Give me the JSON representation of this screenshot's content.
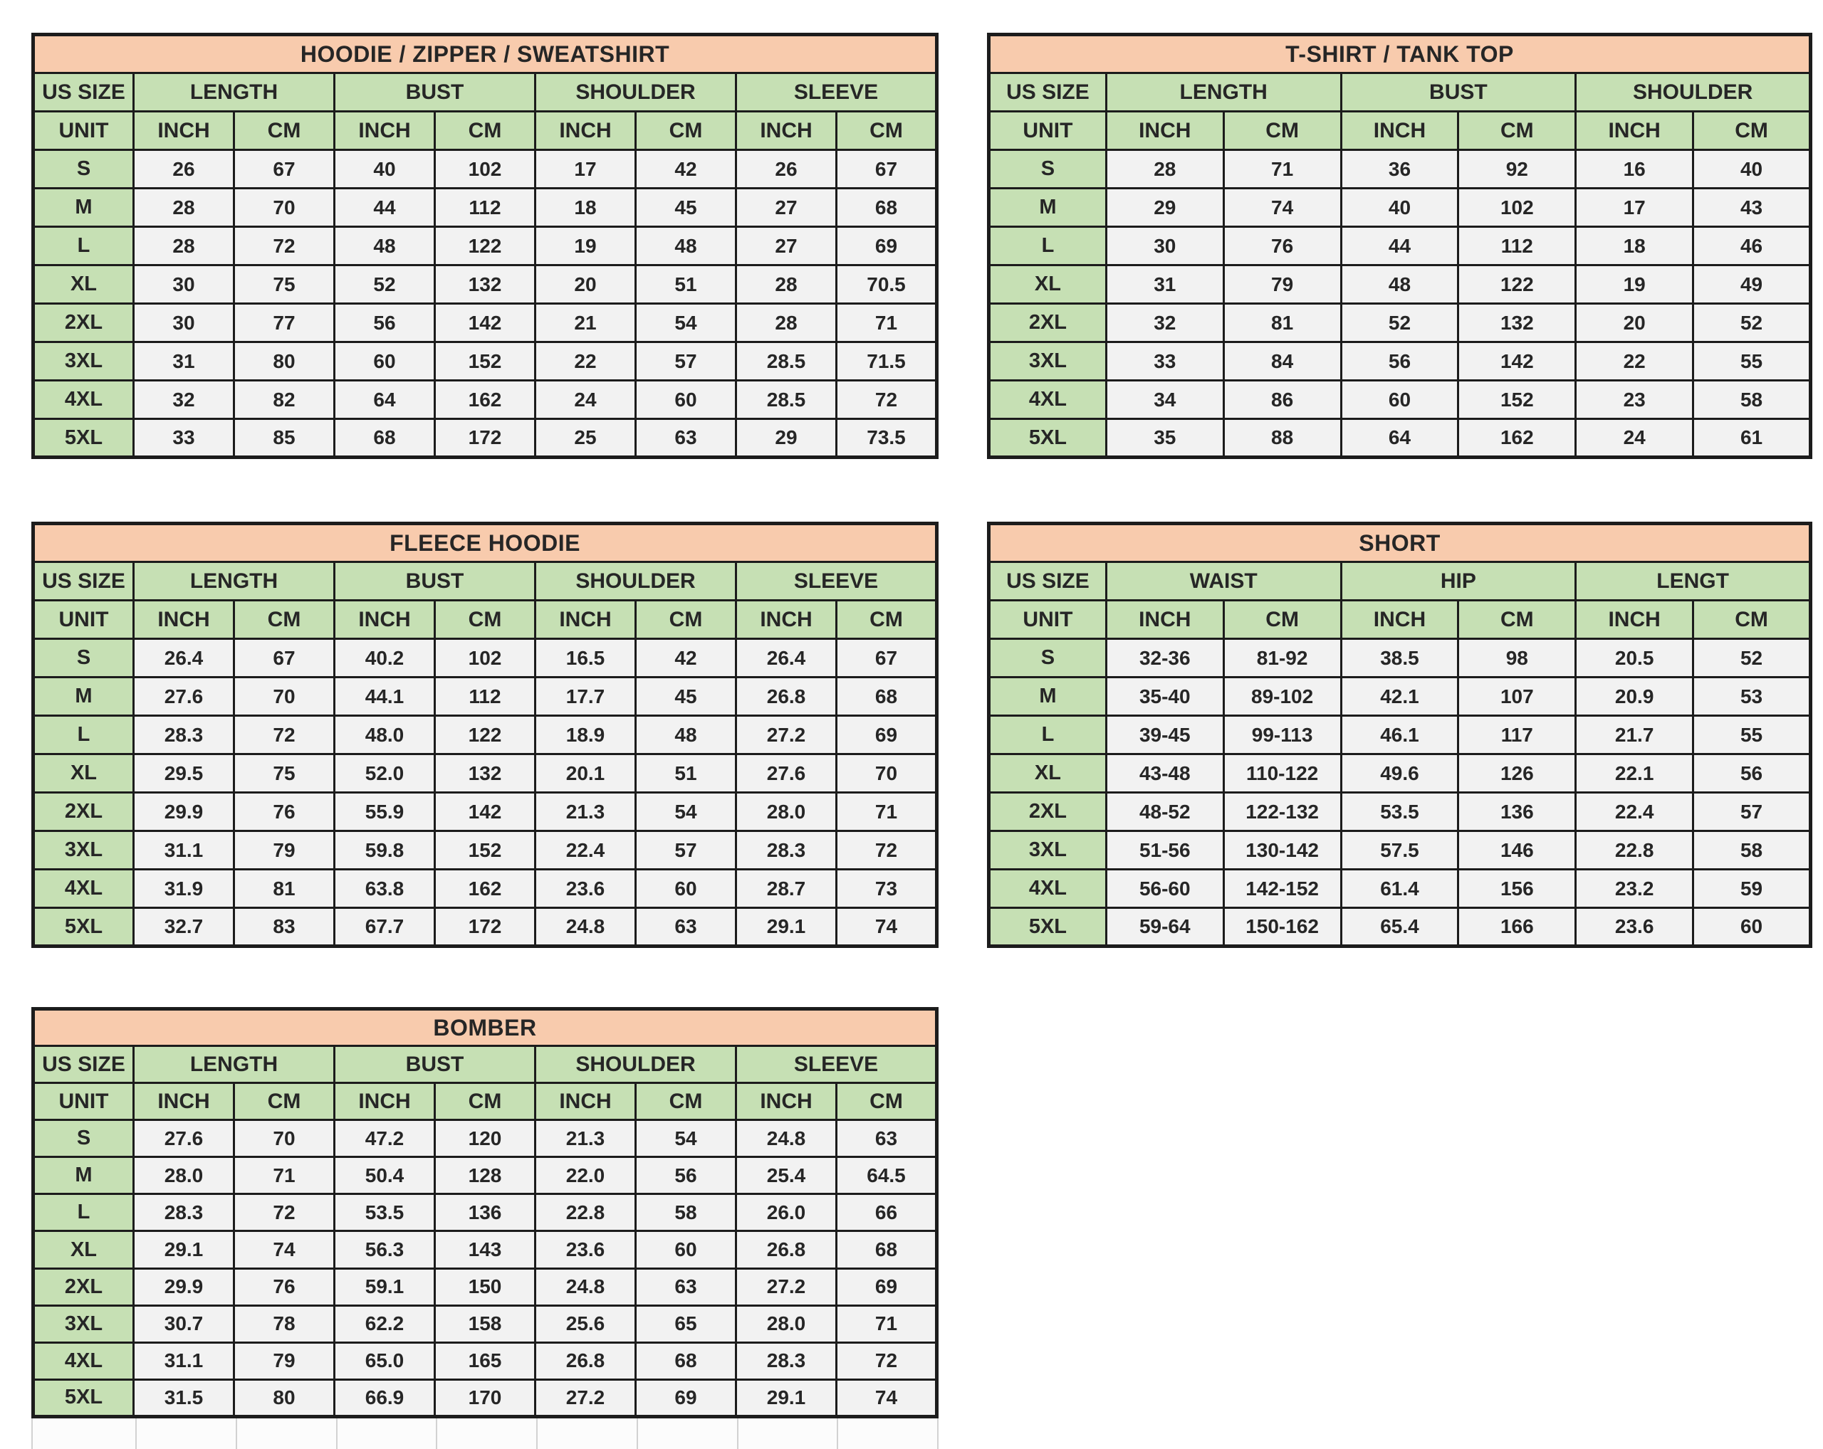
{
  "colors": {
    "title_bg": "#F8CBAD",
    "header_bg": "#C6E0B4",
    "value_bg": "#F2F2F2",
    "border": "#1C1C1C"
  },
  "tables": [
    {
      "title": "HOODIE / ZIPPER / SWEATSHIRT",
      "size_header": "US SIZE",
      "unit_header": "UNIT",
      "unit_columns": [
        "INCH",
        "CM"
      ],
      "groups": [
        {
          "label": "LENGTH"
        },
        {
          "label": "BUST"
        },
        {
          "label": "SHOULDER"
        },
        {
          "label": "SLEEVE"
        }
      ],
      "rows": [
        {
          "size": "S",
          "values": [
            "26",
            "67",
            "40",
            "102",
            "17",
            "42",
            "26",
            "67"
          ]
        },
        {
          "size": "M",
          "values": [
            "28",
            "70",
            "44",
            "112",
            "18",
            "45",
            "27",
            "68"
          ]
        },
        {
          "size": "L",
          "values": [
            "28",
            "72",
            "48",
            "122",
            "19",
            "48",
            "27",
            "69"
          ]
        },
        {
          "size": "XL",
          "values": [
            "30",
            "75",
            "52",
            "132",
            "20",
            "51",
            "28",
            "70.5"
          ]
        },
        {
          "size": "2XL",
          "values": [
            "30",
            "77",
            "56",
            "142",
            "21",
            "54",
            "28",
            "71"
          ]
        },
        {
          "size": "3XL",
          "values": [
            "31",
            "80",
            "60",
            "152",
            "22",
            "57",
            "28.5",
            "71.5"
          ]
        },
        {
          "size": "4XL",
          "values": [
            "32",
            "82",
            "64",
            "162",
            "24",
            "60",
            "28.5",
            "72"
          ]
        },
        {
          "size": "5XL",
          "values": [
            "33",
            "85",
            "68",
            "172",
            "25",
            "63",
            "29",
            "73.5"
          ]
        }
      ]
    },
    {
      "title": "T-SHIRT / TANK TOP",
      "size_header": "US SIZE",
      "unit_header": "UNIT",
      "unit_columns": [
        "INCH",
        "CM"
      ],
      "groups": [
        {
          "label": "LENGTH"
        },
        {
          "label": "BUST"
        },
        {
          "label": "SHOULDER"
        }
      ],
      "rows": [
        {
          "size": "S",
          "values": [
            "28",
            "71",
            "36",
            "92",
            "16",
            "40"
          ]
        },
        {
          "size": "M",
          "values": [
            "29",
            "74",
            "40",
            "102",
            "17",
            "43"
          ]
        },
        {
          "size": "L",
          "values": [
            "30",
            "76",
            "44",
            "112",
            "18",
            "46"
          ]
        },
        {
          "size": "XL",
          "values": [
            "31",
            "79",
            "48",
            "122",
            "19",
            "49"
          ]
        },
        {
          "size": "2XL",
          "values": [
            "32",
            "81",
            "52",
            "132",
            "20",
            "52"
          ]
        },
        {
          "size": "3XL",
          "values": [
            "33",
            "84",
            "56",
            "142",
            "22",
            "55"
          ]
        },
        {
          "size": "4XL",
          "values": [
            "34",
            "86",
            "60",
            "152",
            "23",
            "58"
          ]
        },
        {
          "size": "5XL",
          "values": [
            "35",
            "88",
            "64",
            "162",
            "24",
            "61"
          ]
        }
      ]
    },
    {
      "title": "FLEECE HOODIE",
      "size_header": "US SIZE",
      "unit_header": "UNIT",
      "unit_columns": [
        "INCH",
        "CM"
      ],
      "groups": [
        {
          "label": "LENGTH"
        },
        {
          "label": "BUST"
        },
        {
          "label": "SHOULDER"
        },
        {
          "label": "SLEEVE"
        }
      ],
      "rows": [
        {
          "size": "S",
          "values": [
            "26.4",
            "67",
            "40.2",
            "102",
            "16.5",
            "42",
            "26.4",
            "67"
          ]
        },
        {
          "size": "M",
          "values": [
            "27.6",
            "70",
            "44.1",
            "112",
            "17.7",
            "45",
            "26.8",
            "68"
          ]
        },
        {
          "size": "L",
          "values": [
            "28.3",
            "72",
            "48.0",
            "122",
            "18.9",
            "48",
            "27.2",
            "69"
          ]
        },
        {
          "size": "XL",
          "values": [
            "29.5",
            "75",
            "52.0",
            "132",
            "20.1",
            "51",
            "27.6",
            "70"
          ]
        },
        {
          "size": "2XL",
          "values": [
            "29.9",
            "76",
            "55.9",
            "142",
            "21.3",
            "54",
            "28.0",
            "71"
          ]
        },
        {
          "size": "3XL",
          "values": [
            "31.1",
            "79",
            "59.8",
            "152",
            "22.4",
            "57",
            "28.3",
            "72"
          ]
        },
        {
          "size": "4XL",
          "values": [
            "31.9",
            "81",
            "63.8",
            "162",
            "23.6",
            "60",
            "28.7",
            "73"
          ]
        },
        {
          "size": "5XL",
          "values": [
            "32.7",
            "83",
            "67.7",
            "172",
            "24.8",
            "63",
            "29.1",
            "74"
          ]
        }
      ]
    },
    {
      "title": "SHORT",
      "size_header": "US SIZE",
      "unit_header": "UNIT",
      "unit_columns": [
        "INCH",
        "CM"
      ],
      "groups": [
        {
          "label": "WAIST"
        },
        {
          "label": "HIP"
        },
        {
          "label": "LENGT"
        }
      ],
      "rows": [
        {
          "size": "S",
          "values": [
            "32-36",
            "81-92",
            "38.5",
            "98",
            "20.5",
            "52"
          ]
        },
        {
          "size": "M",
          "values": [
            "35-40",
            "89-102",
            "42.1",
            "107",
            "20.9",
            "53"
          ]
        },
        {
          "size": "L",
          "values": [
            "39-45",
            "99-113",
            "46.1",
            "117",
            "21.7",
            "55"
          ]
        },
        {
          "size": "XL",
          "values": [
            "43-48",
            "110-122",
            "49.6",
            "126",
            "22.1",
            "56"
          ]
        },
        {
          "size": "2XL",
          "values": [
            "48-52",
            "122-132",
            "53.5",
            "136",
            "22.4",
            "57"
          ]
        },
        {
          "size": "3XL",
          "values": [
            "51-56",
            "130-142",
            "57.5",
            "146",
            "22.8",
            "58"
          ]
        },
        {
          "size": "4XL",
          "values": [
            "56-60",
            "142-152",
            "61.4",
            "156",
            "23.2",
            "59"
          ]
        },
        {
          "size": "5XL",
          "values": [
            "59-64",
            "150-162",
            "65.4",
            "166",
            "23.6",
            "60"
          ]
        }
      ]
    },
    {
      "title": "BOMBER",
      "size_header": "US SIZE",
      "unit_header": "UNIT",
      "unit_columns": [
        "INCH",
        "CM"
      ],
      "groups": [
        {
          "label": "LENGTH"
        },
        {
          "label": "BUST"
        },
        {
          "label": "SHOULDER"
        },
        {
          "label": "SLEEVE"
        }
      ],
      "rows": [
        {
          "size": "S",
          "values": [
            "27.6",
            "70",
            "47.2",
            "120",
            "21.3",
            "54",
            "24.8",
            "63"
          ]
        },
        {
          "size": "M",
          "values": [
            "28.0",
            "71",
            "50.4",
            "128",
            "22.0",
            "56",
            "25.4",
            "64.5"
          ]
        },
        {
          "size": "L",
          "values": [
            "28.3",
            "72",
            "53.5",
            "136",
            "22.8",
            "58",
            "26.0",
            "66"
          ]
        },
        {
          "size": "XL",
          "values": [
            "29.1",
            "74",
            "56.3",
            "143",
            "23.6",
            "60",
            "26.8",
            "68"
          ]
        },
        {
          "size": "2XL",
          "values": [
            "29.9",
            "76",
            "59.1",
            "150",
            "24.8",
            "63",
            "27.2",
            "69"
          ]
        },
        {
          "size": "3XL",
          "values": [
            "30.7",
            "78",
            "62.2",
            "158",
            "25.6",
            "65",
            "28.0",
            "71"
          ]
        },
        {
          "size": "4XL",
          "values": [
            "31.1",
            "79",
            "65.0",
            "165",
            "26.8",
            "68",
            "28.3",
            "72"
          ]
        },
        {
          "size": "5XL",
          "values": [
            "31.5",
            "80",
            "66.9",
            "170",
            "27.2",
            "69",
            "29.1",
            "74"
          ]
        }
      ]
    }
  ]
}
